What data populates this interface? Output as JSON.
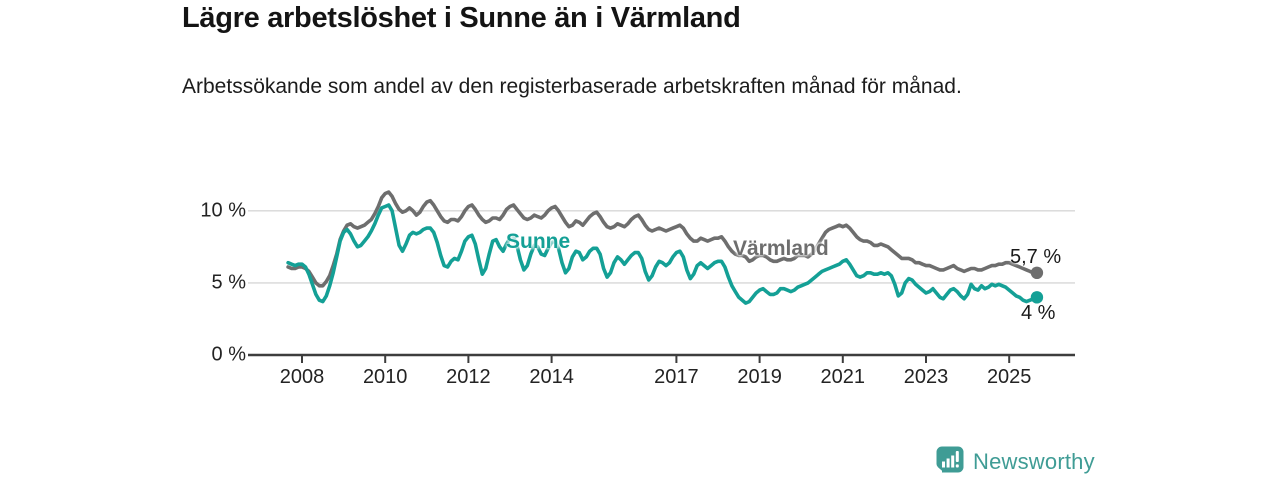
{
  "title": "Lägre arbetslöshet i Sunne än i Värmland",
  "subtitle": "Arbetssökande som andel av den registerbaserade arbetskraften månad för månad.",
  "branding": {
    "name": "Newsworthy",
    "icon": "newsworthy-chart-bubble-icon",
    "color": "#3f9c95"
  },
  "chart_data": {
    "type": "line",
    "title": "Lägre arbetslöshet i Sunne än i Värmland",
    "subtitle": "Arbetssökande som andel av den registerbaserade arbetskraften månad för månad.",
    "frequency": "monthly",
    "x_start": "2007-09",
    "x_end": "2025-09",
    "x_ticks": [
      2008,
      2010,
      2012,
      2014,
      2017,
      2019,
      2021,
      2023,
      2025
    ],
    "x_tick_labels": [
      "2008",
      "2010",
      "2012",
      "2014",
      "2017",
      "2019",
      "2021",
      "2023",
      "2025"
    ],
    "y_ticks": [
      0,
      5,
      10
    ],
    "y_tick_labels": [
      "0 %",
      "5 %",
      "10 %"
    ],
    "ylim": [
      0,
      11.9
    ],
    "grid": "horizontal-gridlines-at-5-and-10",
    "legend_position": "inline-labels-on-lines",
    "axis_color": "#3d3d3d",
    "gridline_color": "#d7d7d7",
    "series": [
      {
        "name": "Värmland",
        "color": "#6e6e6e",
        "end_label": "5,7 %",
        "end_value": 5.7,
        "values": [
          6.1,
          6.0,
          6.0,
          6.1,
          6.1,
          6.0,
          5.8,
          5.4,
          5.0,
          4.8,
          4.8,
          5.1,
          5.5,
          6.2,
          7.0,
          8.0,
          8.6,
          9.0,
          9.1,
          8.9,
          8.8,
          8.9,
          9.0,
          9.2,
          9.4,
          9.8,
          10.3,
          10.9,
          11.2,
          11.3,
          11.0,
          10.5,
          10.1,
          9.9,
          10.0,
          10.2,
          10.0,
          9.7,
          9.9,
          10.3,
          10.6,
          10.7,
          10.4,
          10.0,
          9.6,
          9.3,
          9.2,
          9.4,
          9.4,
          9.3,
          9.6,
          10.0,
          10.3,
          10.4,
          10.1,
          9.7,
          9.4,
          9.2,
          9.3,
          9.5,
          9.5,
          9.4,
          9.7,
          10.1,
          10.3,
          10.4,
          10.1,
          9.8,
          9.5,
          9.4,
          9.5,
          9.7,
          9.6,
          9.5,
          9.7,
          10.0,
          10.2,
          10.3,
          10.0,
          9.6,
          9.2,
          8.9,
          9.0,
          9.3,
          9.2,
          9.0,
          9.3,
          9.6,
          9.8,
          9.9,
          9.6,
          9.2,
          8.9,
          8.8,
          8.9,
          9.1,
          9.0,
          8.9,
          9.1,
          9.4,
          9.6,
          9.7,
          9.4,
          9.0,
          8.7,
          8.6,
          8.7,
          8.8,
          8.7,
          8.6,
          8.7,
          8.8,
          8.9,
          9.0,
          8.8,
          8.4,
          8.1,
          7.9,
          7.9,
          8.1,
          8.0,
          7.9,
          8.0,
          8.1,
          8.1,
          8.2,
          7.9,
          7.5,
          7.2,
          7.0,
          6.9,
          6.9,
          6.8,
          6.5,
          6.6,
          6.8,
          6.9,
          6.9,
          6.8,
          6.6,
          6.5,
          6.5,
          6.6,
          6.7,
          6.6,
          6.6,
          6.7,
          6.9,
          6.9,
          6.9,
          6.8,
          7.0,
          7.3,
          7.7,
          8.1,
          8.5,
          8.7,
          8.8,
          8.9,
          9.0,
          8.9,
          9.0,
          8.8,
          8.5,
          8.2,
          8.0,
          7.9,
          7.9,
          7.8,
          7.6,
          7.6,
          7.7,
          7.6,
          7.5,
          7.3,
          7.1,
          6.9,
          6.7,
          6.7,
          6.7,
          6.6,
          6.4,
          6.4,
          6.3,
          6.2,
          6.2,
          6.1,
          6.0,
          5.9,
          5.9,
          6.0,
          6.1,
          6.2,
          6.0,
          5.9,
          5.8,
          5.9,
          6.0,
          6.0,
          5.9,
          5.9,
          6.0,
          6.1,
          6.2,
          6.2,
          6.3,
          6.3,
          6.4,
          6.4,
          6.3,
          6.2,
          6.1,
          6.0,
          5.9,
          5.8,
          5.7,
          5.7
        ]
      },
      {
        "name": "Sunne",
        "color": "#14a096",
        "end_label": "4 %",
        "end_value": 4.0,
        "values": [
          6.4,
          6.3,
          6.2,
          6.3,
          6.3,
          6.1,
          5.6,
          4.9,
          4.2,
          3.8,
          3.7,
          4.1,
          4.8,
          5.7,
          6.8,
          7.9,
          8.5,
          8.7,
          8.4,
          7.9,
          7.5,
          7.6,
          7.9,
          8.2,
          8.6,
          9.1,
          9.7,
          10.2,
          10.3,
          10.4,
          10.0,
          8.8,
          7.6,
          7.2,
          7.7,
          8.3,
          8.5,
          8.4,
          8.5,
          8.7,
          8.8,
          8.8,
          8.5,
          7.8,
          6.9,
          6.2,
          6.1,
          6.5,
          6.7,
          6.6,
          7.2,
          7.9,
          8.2,
          8.3,
          7.7,
          6.6,
          5.6,
          6.0,
          7.0,
          7.9,
          8.0,
          7.5,
          7.2,
          7.7,
          8.1,
          8.2,
          7.6,
          6.6,
          5.9,
          6.2,
          7.0,
          7.6,
          7.5,
          7.0,
          6.9,
          7.4,
          7.8,
          7.9,
          7.4,
          6.4,
          5.7,
          6.0,
          6.8,
          7.2,
          7.1,
          6.6,
          6.8,
          7.2,
          7.4,
          7.4,
          7.0,
          6.0,
          5.4,
          5.7,
          6.4,
          6.8,
          6.6,
          6.3,
          6.6,
          6.9,
          7.1,
          7.1,
          6.7,
          5.8,
          5.2,
          5.5,
          6.1,
          6.5,
          6.4,
          6.2,
          6.4,
          6.8,
          7.1,
          7.2,
          6.8,
          5.9,
          5.3,
          5.6,
          6.2,
          6.4,
          6.2,
          6.0,
          6.2,
          6.4,
          6.5,
          6.5,
          6.1,
          5.4,
          4.8,
          4.4,
          4.0,
          3.8,
          3.6,
          3.7,
          4.0,
          4.3,
          4.5,
          4.6,
          4.4,
          4.2,
          4.2,
          4.3,
          4.6,
          4.6,
          4.5,
          4.4,
          4.5,
          4.7,
          4.8,
          4.9,
          5.0,
          5.2,
          5.4,
          5.6,
          5.8,
          5.9,
          6.0,
          6.1,
          6.2,
          6.3,
          6.5,
          6.6,
          6.3,
          5.9,
          5.5,
          5.4,
          5.5,
          5.7,
          5.7,
          5.6,
          5.6,
          5.7,
          5.6,
          5.7,
          5.5,
          4.9,
          4.1,
          4.3,
          5.0,
          5.3,
          5.2,
          4.9,
          4.7,
          4.5,
          4.3,
          4.4,
          4.6,
          4.3,
          4.0,
          3.9,
          4.2,
          4.5,
          4.6,
          4.4,
          4.1,
          3.9,
          4.2,
          4.9,
          4.6,
          4.5,
          4.8,
          4.6,
          4.7,
          4.9,
          4.8,
          4.9,
          4.8,
          4.7,
          4.5,
          4.3,
          4.1,
          4.0,
          3.8,
          3.7,
          3.8,
          3.9,
          4.0
        ]
      }
    ]
  }
}
